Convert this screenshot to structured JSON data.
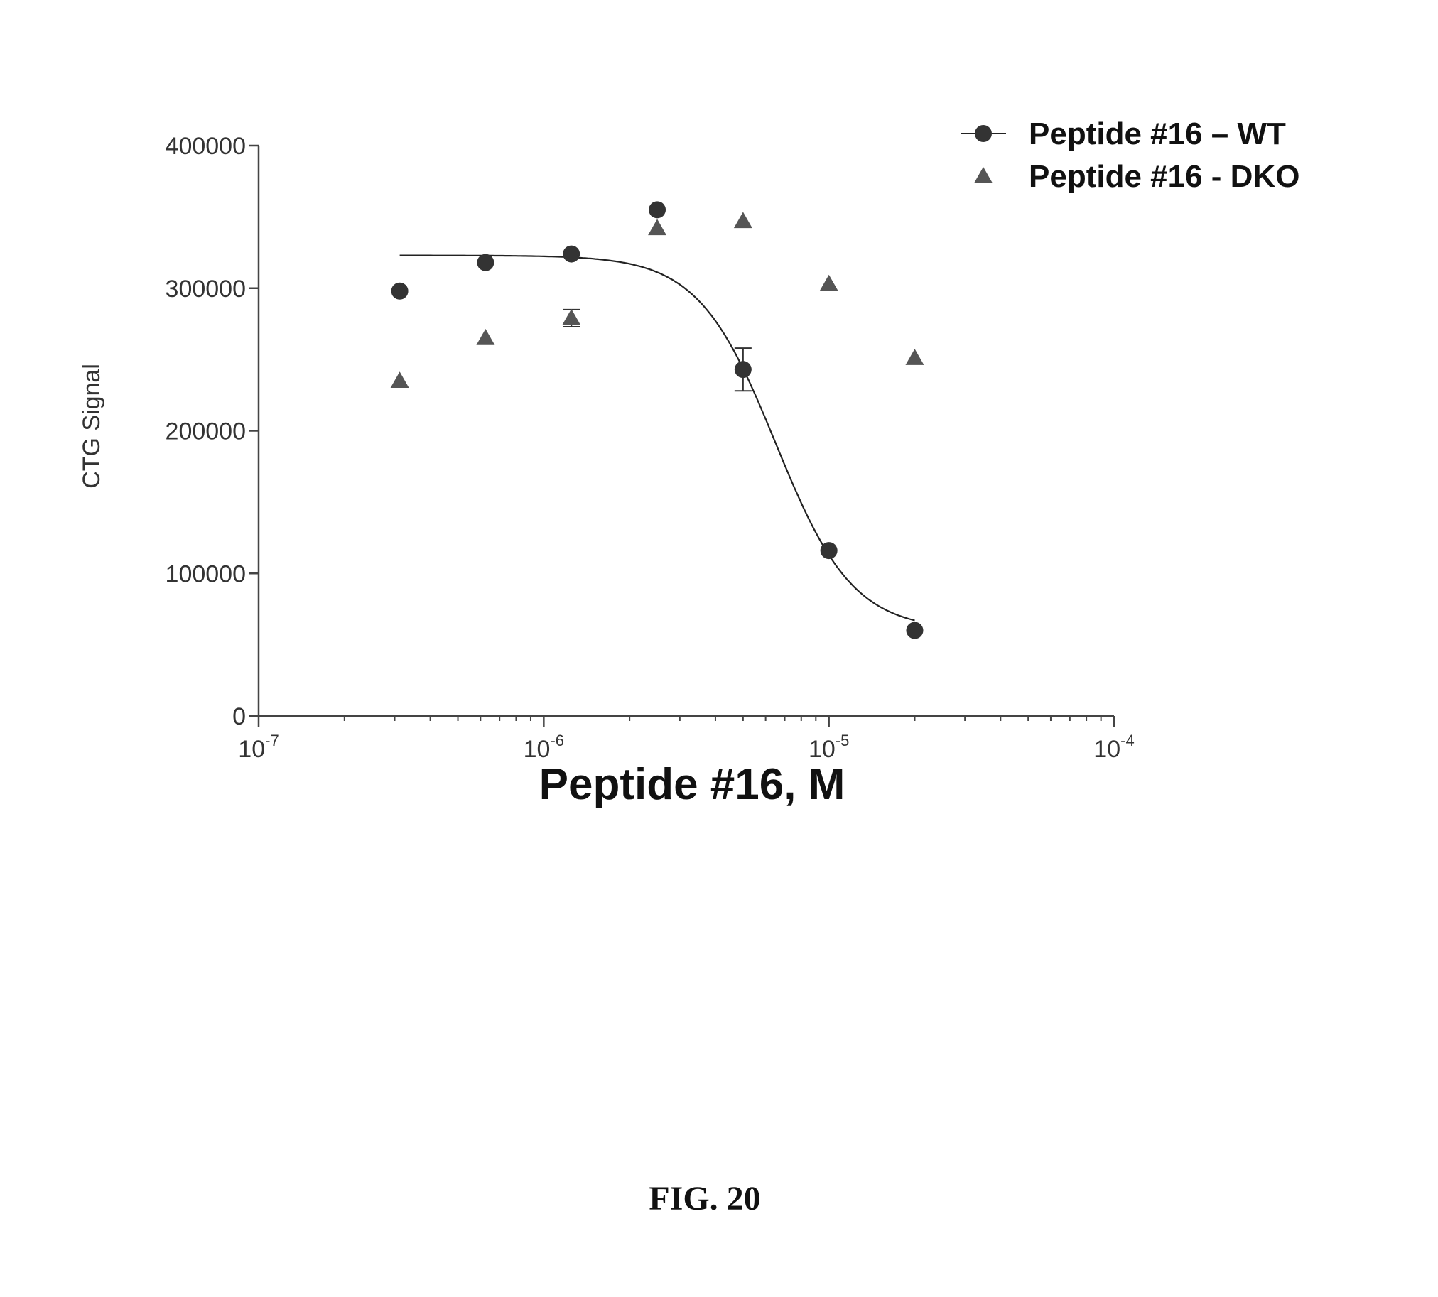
{
  "figure": {
    "caption": "FIG. 20"
  },
  "chart_data": {
    "type": "scatter",
    "xlabel": "Peptide #16, M",
    "ylabel": "CTG Signal",
    "xscale": "log",
    "xlim": [
      1e-07,
      0.0001
    ],
    "ylim": [
      0,
      400000
    ],
    "x_ticks": [
      {
        "value": 1e-07,
        "base": "10",
        "exp": "-7"
      },
      {
        "value": 1e-06,
        "base": "10",
        "exp": "-6"
      },
      {
        "value": 1e-05,
        "base": "10",
        "exp": "-5"
      },
      {
        "value": 0.0001,
        "base": "10",
        "exp": "-4"
      }
    ],
    "y_ticks": [
      "0",
      "100000",
      "200000",
      "300000",
      "400000"
    ],
    "grid": false,
    "legend_position": "top-right",
    "series": [
      {
        "name": "Peptide #16 – WT",
        "marker": "circle",
        "color": "#333333",
        "x": [
          3.125e-07,
          6.25e-07,
          1.25e-06,
          2.5e-06,
          5e-06,
          1e-05,
          2e-05
        ],
        "y": [
          298000,
          318000,
          324000,
          355000,
          243000,
          116000,
          60000
        ],
        "error": [
          0,
          0,
          0,
          0,
          15000,
          0,
          0
        ],
        "fit": {
          "model": "four-parameter logistic",
          "top": 323000,
          "bottom": 60000,
          "ic50": 6.5e-06,
          "hill": 3.2
        }
      },
      {
        "name": "Peptide #16 - DKO",
        "marker": "triangle",
        "color": "#555555",
        "x": [
          3.125e-07,
          6.25e-07,
          1.25e-06,
          2.5e-06,
          5e-06,
          1e-05,
          2e-05
        ],
        "y": [
          235000,
          265000,
          279000,
          342000,
          347000,
          303000,
          251000
        ],
        "error": [
          0,
          0,
          6000,
          0,
          0,
          0,
          0
        ]
      }
    ]
  }
}
